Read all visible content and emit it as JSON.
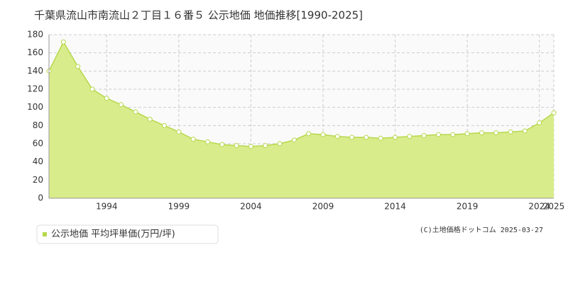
{
  "chart_data": {
    "type": "area",
    "title": "千葉県流山市南流山２丁目１６番５ 公示地価 地価推移[1990-2025]",
    "x": [
      1990,
      1991,
      1992,
      1993,
      1994,
      1995,
      1996,
      1997,
      1998,
      1999,
      2000,
      2001,
      2002,
      2003,
      2004,
      2005,
      2006,
      2007,
      2008,
      2009,
      2010,
      2011,
      2012,
      2013,
      2014,
      2015,
      2016,
      2017,
      2018,
      2019,
      2020,
      2021,
      2022,
      2023,
      2024,
      2025
    ],
    "series": [
      {
        "name": "公示地価 平均坪単価(万円/坪)",
        "color": "#b5d84a",
        "fill": "#d9ec8c",
        "values": [
          140,
          172,
          145,
          120,
          110,
          103,
          95,
          87,
          80,
          73,
          65,
          62,
          59,
          58,
          57,
          58,
          60,
          64,
          71,
          70,
          68,
          67,
          67,
          66,
          67,
          68,
          69,
          70,
          70,
          71,
          72,
          72,
          73,
          74,
          83,
          94
        ]
      }
    ],
    "xlim": [
      1990,
      2025
    ],
    "xticks": [
      1994,
      1999,
      2004,
      2009,
      2014,
      2019,
      2024,
      2025
    ],
    "ylim": [
      0,
      180
    ],
    "yticks": [
      0,
      20,
      40,
      60,
      80,
      100,
      120,
      140,
      160,
      180
    ],
    "grid": true,
    "credit": "(C)土地価格ドットコム 2025-03-27"
  }
}
